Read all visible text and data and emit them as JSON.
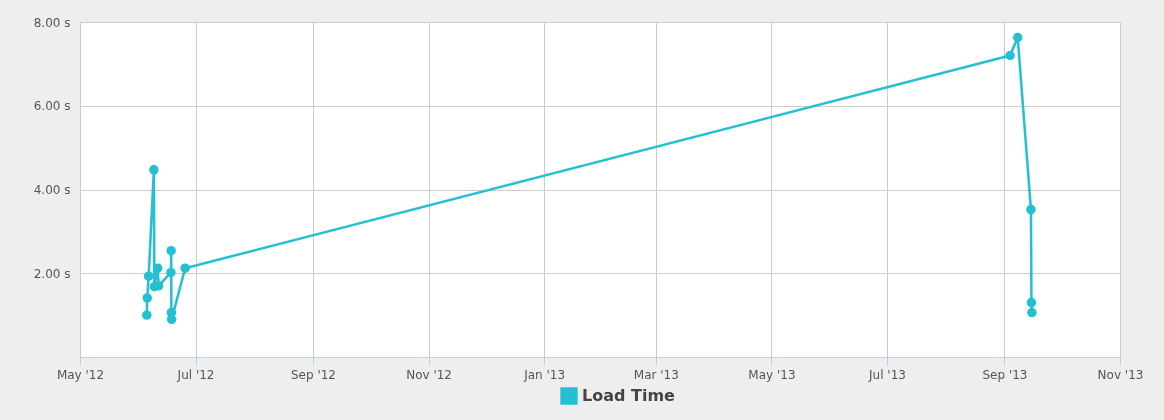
{
  "chart_data": {
    "type": "line",
    "x": [
      "2012-06-05T06:00",
      "2012-06-05T12:00",
      "2012-06-06T06:00",
      "2012-06-09T00:00",
      "2012-06-09T06:00",
      "2012-06-11T00:00",
      "2012-06-11T12:00",
      "2012-06-18T00:00",
      "2012-06-18T03:00",
      "2012-06-18T06:00",
      "2012-06-18T09:00",
      "2012-06-25T12:00",
      "2013-09-04T00:00",
      "2013-09-08T00:00",
      "2013-09-15T00:00",
      "2013-09-15T06:00",
      "2013-09-15T12:00"
    ],
    "series": [
      {
        "name": "Load Time",
        "color": "#22c0d0",
        "values": [
          1.0,
          1.41,
          1.93,
          4.47,
          1.68,
          2.12,
          1.7,
          2.02,
          2.54,
          1.06,
          0.9,
          2.12,
          7.2,
          7.63,
          3.52,
          1.3,
          1.06
        ]
      }
    ],
    "xlim": [
      "2012-05-01",
      "2013-11-01"
    ],
    "xticks": [
      {
        "value": "2012-05-01",
        "label": "May '12"
      },
      {
        "value": "2012-07-01",
        "label": "Jul '12"
      },
      {
        "value": "2012-09-01",
        "label": "Sep '12"
      },
      {
        "value": "2012-11-01",
        "label": "Nov '12"
      },
      {
        "value": "2013-01-01",
        "label": "Jan '13"
      },
      {
        "value": "2013-03-01",
        "label": "Mar '13"
      },
      {
        "value": "2013-05-01",
        "label": "May '13"
      },
      {
        "value": "2013-07-01",
        "label": "Jul '13"
      },
      {
        "value": "2013-09-01",
        "label": "Sep '13"
      },
      {
        "value": "2013-11-01",
        "label": "Nov '13"
      }
    ],
    "ylim": [
      0,
      8
    ],
    "yticks": [
      {
        "value": 2,
        "label": "2.00 s"
      },
      {
        "value": 4,
        "label": "4.00 s"
      },
      {
        "value": 6,
        "label": "6.00 s"
      },
      {
        "value": 8,
        "label": "8.00 s"
      }
    ],
    "grid": true,
    "legend": "bottom",
    "marker": "circle",
    "line_style": "solid"
  }
}
